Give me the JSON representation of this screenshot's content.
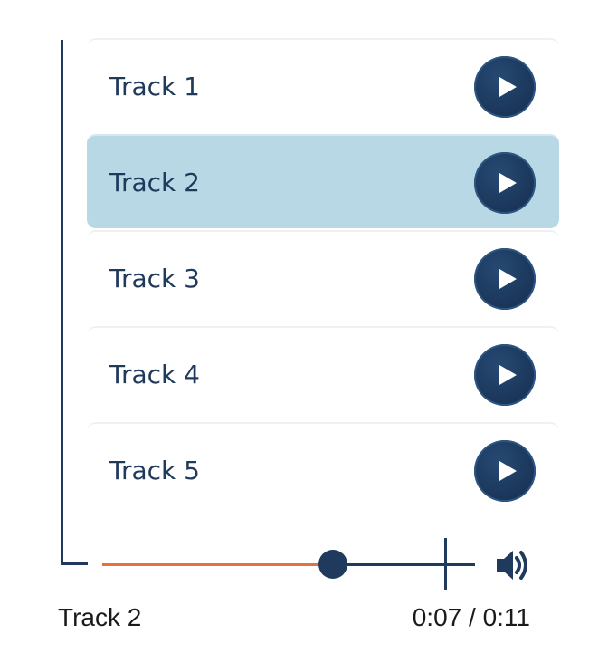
{
  "playlist": {
    "tracks": [
      {
        "title": "Track 1",
        "active": false,
        "play_icon": "play-icon"
      },
      {
        "title": "Track 2",
        "active": true,
        "play_icon": "play-icon"
      },
      {
        "title": "Track 3",
        "active": false,
        "play_icon": "play-icon"
      },
      {
        "title": "Track 4",
        "active": false,
        "play_icon": "play-icon"
      },
      {
        "title": "Track 5",
        "active": false,
        "play_icon": "play-icon"
      }
    ]
  },
  "player": {
    "now_playing": "Track 2",
    "current_time": "0:07",
    "duration": "0:11",
    "progress_fraction": 0.62,
    "volume_icon": "volume-icon"
  },
  "colors": {
    "accent_progress": "#e8703a",
    "primary": "#1f3a5c",
    "active_row": "#b7d8e4"
  }
}
